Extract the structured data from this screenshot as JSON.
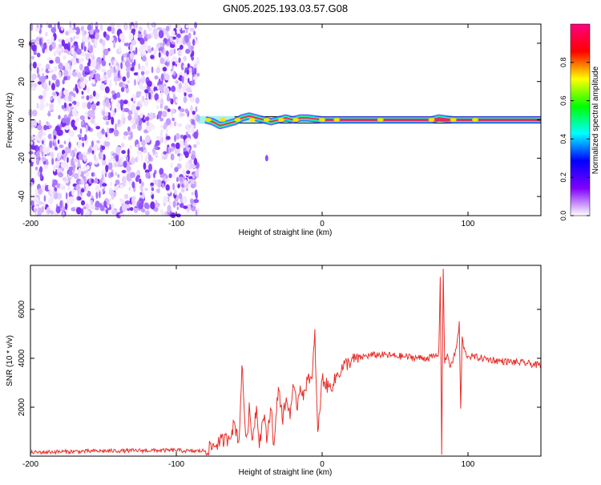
{
  "title": "GN05.2025.193.03.57.G08",
  "chart_data": [
    {
      "type": "heatmap",
      "xlabel": "Height of straight line (km)",
      "ylabel": "Frequency (Hz)",
      "xlim": [
        -200,
        150
      ],
      "ylim": [
        -50,
        50
      ],
      "xticks": [
        -200,
        -100,
        0,
        100
      ],
      "yticks": [
        -40,
        -20,
        0,
        20,
        40
      ],
      "grid": false,
      "noise_region_x": [
        -200,
        -85
      ],
      "signal_start_x": -85,
      "track": [
        {
          "x": -80,
          "freq": 0
        },
        {
          "x": -75,
          "freq": -1
        },
        {
          "x": -70,
          "freq": -3
        },
        {
          "x": -65,
          "freq": -2
        },
        {
          "x": -60,
          "freq": -1
        },
        {
          "x": -55,
          "freq": 1
        },
        {
          "x": -50,
          "freq": 2
        },
        {
          "x": -45,
          "freq": 1
        },
        {
          "x": -40,
          "freq": 0
        },
        {
          "x": -35,
          "freq": -1
        },
        {
          "x": -30,
          "freq": 0
        },
        {
          "x": -25,
          "freq": 1
        },
        {
          "x": -20,
          "freq": 0
        },
        {
          "x": -15,
          "freq": 1
        },
        {
          "x": -10,
          "freq": 1
        },
        {
          "x": 0,
          "freq": 0
        },
        {
          "x": 50,
          "freq": 0
        },
        {
          "x": 75,
          "freq": 0
        },
        {
          "x": 80,
          "freq": 1
        },
        {
          "x": 90,
          "freq": 0
        },
        {
          "x": 100,
          "freq": 0
        },
        {
          "x": 150,
          "freq": 0
        }
      ],
      "colorbar": {
        "label": "Normalized spectral amplitude",
        "range": [
          0,
          1
        ],
        "ticks": [
          "0.0",
          "0.2",
          "0.4",
          "0.6",
          "0.8"
        ],
        "colors": [
          "#ffffff",
          "#8000ff",
          "#0000ff",
          "#00ffff",
          "#00ff00",
          "#ffff00",
          "#ff0000",
          "#ff0080"
        ]
      },
      "track_color": "#e03060"
    },
    {
      "type": "line",
      "xlabel": "Height of straight line (km)",
      "ylabel": "SNR (10 * v/v)",
      "xlim": [
        -200,
        150
      ],
      "ylim": [
        0,
        7800
      ],
      "xticks": [
        -200,
        -100,
        0,
        100
      ],
      "yticks": [
        2000,
        4000,
        6000
      ],
      "grid": false,
      "color": "#e8302a",
      "x": [
        -200,
        -180,
        -160,
        -140,
        -120,
        -100,
        -90,
        -80,
        -75,
        -70,
        -65,
        -60,
        -57,
        -55,
        -52,
        -50,
        -48,
        -45,
        -43,
        -40,
        -38,
        -35,
        -33,
        -30,
        -27,
        -25,
        -22,
        -20,
        -17,
        -15,
        -12,
        -10,
        -7,
        -5,
        -3,
        0,
        3,
        5,
        8,
        10,
        15,
        20,
        25,
        30,
        40,
        50,
        60,
        70,
        75,
        78,
        80,
        81,
        82,
        83,
        84,
        86,
        88,
        90,
        92,
        94,
        95,
        96,
        98,
        100,
        110,
        120,
        130,
        140,
        150
      ],
      "y": [
        150,
        180,
        200,
        220,
        230,
        240,
        200,
        220,
        400,
        600,
        700,
        1300,
        600,
        3700,
        500,
        1900,
        700,
        2000,
        600,
        1700,
        700,
        2100,
        300,
        2900,
        1500,
        2300,
        1800,
        2700,
        2100,
        2900,
        2400,
        3400,
        3000,
        5000,
        800,
        3200,
        2900,
        2800,
        3000,
        3300,
        3700,
        3900,
        4000,
        4100,
        4150,
        4100,
        4050,
        4000,
        4050,
        4100,
        4200,
        7400,
        150,
        7600,
        3800,
        4200,
        3600,
        4000,
        4400,
        5400,
        1900,
        4800,
        4200,
        4100,
        4000,
        3900,
        3850,
        3800,
        3700
      ]
    }
  ]
}
